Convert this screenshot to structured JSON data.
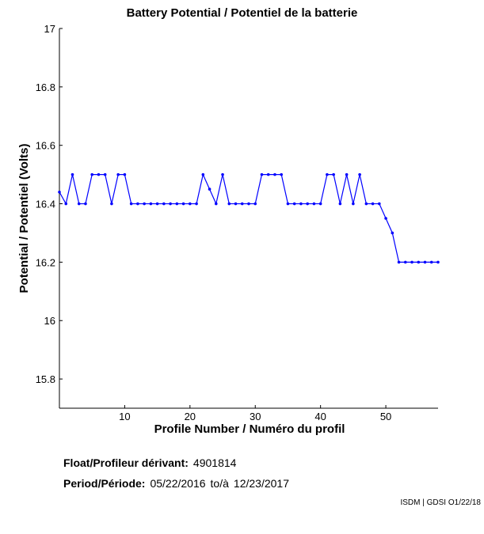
{
  "chart_data": {
    "type": "line",
    "title": "Battery Potential / Potentiel de la batterie",
    "xlabel": "Profile Number / Numéro du profil",
    "ylabel": "Potential / Potentiel (Volts)",
    "xlim": [
      0,
      58
    ],
    "ylim": [
      15.7,
      17
    ],
    "xticks": [
      10,
      20,
      30,
      40,
      50
    ],
    "yticks": [
      15.8,
      16,
      16.2,
      16.4,
      16.6,
      16.8,
      17
    ],
    "grid": false,
    "series": [
      {
        "color": "#0000ff",
        "x": [
          0,
          1,
          2,
          3,
          4,
          5,
          6,
          7,
          8,
          9,
          10,
          11,
          12,
          13,
          14,
          15,
          16,
          17,
          18,
          19,
          20,
          21,
          22,
          23,
          24,
          25,
          26,
          27,
          28,
          29,
          30,
          31,
          32,
          33,
          34,
          35,
          36,
          37,
          38,
          39,
          40,
          41,
          42,
          43,
          44,
          45,
          46,
          47,
          48,
          49,
          50,
          51,
          52,
          53,
          54,
          55,
          56,
          57,
          58
        ],
        "y": [
          16.44,
          16.4,
          16.5,
          16.4,
          16.4,
          16.5,
          16.5,
          16.5,
          16.4,
          16.5,
          16.5,
          16.4,
          16.4,
          16.4,
          16.4,
          16.4,
          16.4,
          16.4,
          16.4,
          16.4,
          16.4,
          16.4,
          16.5,
          16.45,
          16.4,
          16.5,
          16.4,
          16.4,
          16.4,
          16.4,
          16.4,
          16.5,
          16.5,
          16.5,
          16.5,
          16.4,
          16.4,
          16.4,
          16.4,
          16.4,
          16.4,
          16.5,
          16.5,
          16.4,
          16.5,
          16.4,
          16.5,
          16.4,
          16.4,
          16.4,
          16.35,
          16.3,
          16.2,
          16.2,
          16.2,
          16.2,
          16.2,
          16.2,
          16.2
        ]
      }
    ]
  },
  "info": {
    "float_label": "Float/Profileur dérivant:",
    "float_value": "4901814",
    "period_label": "Period/Période:",
    "period_start": "05/22/2016",
    "period_sep": "to/à",
    "period_end": "12/23/2017"
  },
  "credit": "ISDM | GDSI O1/22/18"
}
